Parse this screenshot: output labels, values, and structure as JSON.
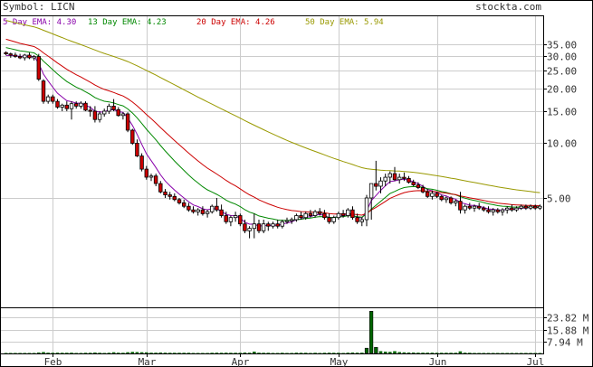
{
  "header": {
    "symbol_text": "Symbol: LICN",
    "brand": "stockta.com"
  },
  "legend": [
    {
      "label": "5 Day EMA: 4.30",
      "color": "#8800aa"
    },
    {
      "label": "13 Day EMA: 4.23",
      "color": "#008800"
    },
    {
      "label": "20 Day EMA: 4.26",
      "color": "#cc0000"
    },
    {
      "label": "50 Day EMA: 5.94",
      "color": "#999900"
    }
  ],
  "colors": {
    "up_candle": "#ffffff",
    "down_candle": "#cc0000",
    "candle_outline": "#000000",
    "volume_bar": "#006600",
    "grid": "#cccccc",
    "frame": "#000000"
  },
  "chart_data": {
    "type": "candlestick",
    "price_axis": {
      "scale": "log",
      "ticks": [
        35.0,
        30.0,
        25.0,
        20.0,
        15.0,
        10.0,
        5.0
      ],
      "tick_labels": [
        "35.00",
        "30.00",
        "25.00",
        "20.00",
        "15.00",
        "10.00",
        "5.00"
      ],
      "range": [
        2.5,
        40
      ]
    },
    "volume_axis": {
      "tick_labels": [
        "23.82 M",
        "15.88 M",
        "7.94 M"
      ],
      "ticks": [
        23.82,
        15.88,
        7.94
      ],
      "range": [
        0,
        30
      ],
      "unit": "M"
    },
    "x_axis": {
      "labels": [
        "Feb",
        "Mar",
        "Apr",
        "May",
        "Jun",
        "Jul"
      ],
      "label_bar_index": [
        10,
        30,
        50,
        71,
        92,
        113
      ]
    },
    "grid": true,
    "ohlc": [
      [
        31.5,
        32.0,
        30.5,
        31.0
      ],
      [
        31.0,
        31.5,
        29.5,
        30.5
      ],
      [
        30.5,
        31.5,
        29.5,
        30.0
      ],
      [
        30.0,
        31.0,
        29.0,
        29.5
      ],
      [
        29.5,
        31.0,
        28.5,
        30.5
      ],
      [
        30.5,
        31.5,
        29.0,
        29.5
      ],
      [
        29.5,
        30.5,
        28.5,
        30.0
      ],
      [
        30.0,
        31.0,
        22.0,
        22.5
      ],
      [
        22.0,
        22.5,
        16.5,
        17.0
      ],
      [
        17.0,
        18.5,
        16.5,
        18.0
      ],
      [
        18.0,
        18.5,
        16.5,
        17.0
      ],
      [
        17.0,
        17.5,
        15.5,
        15.8
      ],
      [
        15.8,
        16.5,
        15.0,
        16.2
      ],
      [
        16.2,
        17.0,
        15.0,
        15.5
      ],
      [
        15.5,
        17.0,
        13.5,
        16.5
      ],
      [
        16.5,
        17.0,
        15.5,
        16.0
      ],
      [
        16.0,
        17.0,
        15.5,
        16.6
      ],
      [
        16.6,
        17.0,
        15.0,
        15.2
      ],
      [
        15.2,
        16.0,
        14.0,
        15.0
      ],
      [
        15.0,
        16.0,
        13.0,
        13.5
      ],
      [
        13.5,
        15.0,
        13.0,
        14.5
      ],
      [
        14.5,
        15.5,
        14.0,
        15.0
      ],
      [
        15.0,
        16.5,
        14.5,
        16.0
      ],
      [
        16.0,
        17.5,
        15.0,
        15.3
      ],
      [
        15.3,
        15.8,
        14.0,
        14.2
      ],
      [
        14.2,
        14.8,
        13.5,
        14.5
      ],
      [
        14.5,
        14.8,
        11.5,
        11.8
      ],
      [
        11.8,
        12.0,
        9.8,
        10.0
      ],
      [
        10.0,
        10.5,
        8.4,
        8.5
      ],
      [
        8.5,
        8.8,
        7.0,
        7.2
      ],
      [
        7.2,
        7.5,
        6.3,
        6.5
      ],
      [
        6.5,
        6.8,
        6.2,
        6.6
      ],
      [
        6.6,
        6.8,
        5.8,
        6.0
      ],
      [
        6.0,
        6.2,
        5.3,
        5.4
      ],
      [
        5.4,
        5.6,
        5.0,
        5.2
      ],
      [
        5.2,
        5.4,
        4.9,
        5.1
      ],
      [
        5.1,
        5.3,
        4.8,
        4.9
      ],
      [
        4.9,
        5.0,
        4.6,
        4.7
      ],
      [
        4.7,
        4.9,
        4.4,
        4.5
      ],
      [
        4.5,
        4.7,
        4.2,
        4.3
      ],
      [
        4.3,
        4.5,
        4.1,
        4.2
      ],
      [
        4.2,
        4.4,
        4.0,
        4.3
      ],
      [
        4.3,
        4.5,
        4.0,
        4.1
      ],
      [
        4.1,
        4.3,
        3.9,
        4.2
      ],
      [
        4.2,
        4.6,
        4.1,
        4.5
      ],
      [
        4.5,
        5.0,
        4.2,
        4.3
      ],
      [
        4.3,
        4.6,
        3.9,
        4.0
      ],
      [
        4.0,
        4.2,
        3.6,
        3.7
      ],
      [
        3.7,
        4.0,
        3.5,
        3.9
      ],
      [
        3.9,
        4.2,
        3.7,
        4.0
      ],
      [
        4.0,
        4.1,
        3.5,
        3.6
      ],
      [
        3.6,
        3.8,
        3.2,
        3.3
      ],
      [
        3.3,
        3.5,
        3.0,
        3.4
      ],
      [
        3.4,
        4.1,
        3.0,
        3.6
      ],
      [
        3.6,
        3.8,
        3.2,
        3.3
      ],
      [
        3.3,
        3.8,
        3.2,
        3.6
      ],
      [
        3.6,
        3.7,
        3.3,
        3.5
      ],
      [
        3.5,
        3.7,
        3.4,
        3.6
      ],
      [
        3.6,
        3.8,
        3.4,
        3.5
      ],
      [
        3.5,
        3.8,
        3.4,
        3.7
      ],
      [
        3.7,
        3.9,
        3.6,
        3.75
      ],
      [
        3.75,
        3.9,
        3.6,
        3.8
      ],
      [
        3.8,
        4.1,
        3.7,
        4.0
      ],
      [
        4.0,
        4.2,
        3.8,
        3.9
      ],
      [
        3.9,
        4.2,
        3.8,
        4.1
      ],
      [
        4.1,
        4.3,
        3.9,
        4.0
      ],
      [
        4.0,
        4.3,
        3.9,
        4.2
      ],
      [
        4.2,
        4.4,
        4.0,
        4.1
      ],
      [
        4.1,
        4.3,
        3.8,
        3.9
      ],
      [
        3.9,
        4.1,
        3.6,
        3.7
      ],
      [
        3.7,
        4.0,
        3.6,
        3.9
      ],
      [
        3.9,
        4.2,
        3.8,
        4.1
      ],
      [
        4.1,
        4.3,
        3.9,
        4.0
      ],
      [
        4.0,
        4.4,
        3.9,
        4.3
      ],
      [
        4.3,
        4.5,
        3.8,
        3.9
      ],
      [
        3.9,
        4.1,
        3.6,
        3.7
      ],
      [
        3.7,
        3.9,
        3.5,
        3.8
      ],
      [
        3.8,
        5.2,
        3.5,
        5.0
      ],
      [
        5.0,
        6.0,
        3.8,
        6.0
      ],
      [
        6.0,
        8.0,
        5.5,
        5.8
      ],
      [
        5.8,
        6.5,
        5.3,
        6.2
      ],
      [
        6.2,
        6.8,
        5.8,
        6.5
      ],
      [
        6.5,
        7.0,
        6.0,
        6.8
      ],
      [
        6.8,
        7.4,
        6.2,
        6.3
      ],
      [
        6.3,
        6.8,
        6.0,
        6.5
      ],
      [
        6.5,
        6.9,
        6.2,
        6.4
      ],
      [
        6.4,
        6.6,
        6.0,
        6.1
      ],
      [
        6.1,
        6.3,
        5.8,
        5.9
      ],
      [
        5.9,
        6.1,
        5.6,
        5.7
      ],
      [
        5.7,
        5.9,
        5.3,
        5.4
      ],
      [
        5.4,
        5.6,
        5.0,
        5.1
      ],
      [
        5.1,
        5.5,
        4.9,
        5.3
      ],
      [
        5.3,
        5.4,
        5.0,
        5.1
      ],
      [
        5.1,
        5.2,
        4.8,
        4.9
      ],
      [
        4.9,
        5.1,
        4.7,
        5.0
      ],
      [
        5.0,
        5.1,
        4.6,
        4.7
      ],
      [
        4.7,
        4.9,
        4.5,
        4.8
      ],
      [
        4.8,
        5.4,
        4.1,
        4.3
      ],
      [
        4.3,
        4.6,
        4.1,
        4.5
      ],
      [
        4.5,
        4.7,
        4.3,
        4.4
      ],
      [
        4.4,
        4.6,
        4.2,
        4.5
      ],
      [
        4.5,
        4.7,
        4.3,
        4.4
      ],
      [
        4.4,
        4.5,
        4.2,
        4.3
      ],
      [
        4.3,
        4.5,
        4.1,
        4.2
      ],
      [
        4.2,
        4.4,
        4.0,
        4.3
      ],
      [
        4.3,
        4.4,
        4.1,
        4.2
      ],
      [
        4.2,
        4.4,
        4.0,
        4.3
      ],
      [
        4.3,
        4.5,
        4.1,
        4.4
      ],
      [
        4.4,
        4.6,
        4.2,
        4.3
      ],
      [
        4.3,
        4.5,
        4.2,
        4.4
      ],
      [
        4.4,
        4.6,
        4.3,
        4.5
      ],
      [
        4.5,
        4.6,
        4.3,
        4.4
      ],
      [
        4.4,
        4.6,
        4.3,
        4.5
      ],
      [
        4.5,
        4.6,
        4.3,
        4.4
      ],
      [
        4.4,
        4.6,
        4.3,
        4.5
      ]
    ],
    "volume": [
      0.2,
      0.3,
      0.2,
      0.2,
      0.3,
      0.2,
      0.3,
      0.6,
      0.9,
      0.5,
      0.4,
      0.5,
      0.4,
      0.4,
      0.5,
      0.3,
      0.3,
      0.4,
      0.4,
      0.6,
      0.4,
      0.3,
      0.4,
      0.8,
      0.5,
      0.4,
      0.8,
      1.0,
      0.9,
      0.8,
      0.7,
      0.5,
      0.5,
      0.6,
      0.5,
      0.4,
      0.4,
      0.4,
      0.4,
      0.4,
      0.3,
      0.3,
      0.3,
      0.3,
      0.4,
      0.5,
      0.4,
      0.5,
      0.4,
      0.4,
      0.4,
      0.6,
      0.5,
      1.2,
      0.5,
      0.4,
      0.4,
      0.3,
      0.3,
      0.4,
      0.3,
      0.3,
      0.5,
      0.4,
      0.4,
      0.3,
      0.4,
      0.3,
      0.4,
      0.5,
      0.4,
      0.4,
      0.3,
      0.5,
      0.6,
      0.5,
      0.5,
      3.5,
      28.0,
      4.0,
      1.5,
      1.2,
      1.0,
      1.5,
      0.9,
      0.7,
      0.6,
      0.6,
      0.5,
      0.5,
      0.5,
      0.5,
      0.4,
      0.4,
      0.4,
      0.4,
      0.4,
      1.4,
      0.5,
      0.4,
      0.3,
      0.3,
      0.3,
      0.3,
      0.3,
      0.3,
      0.3,
      0.3,
      0.3,
      0.3,
      0.3,
      0.3,
      0.3,
      0.3,
      0.3
    ],
    "ema": [
      {
        "name": "5 Day EMA",
        "period": 5,
        "seed": 30,
        "color": "#8800aa"
      },
      {
        "name": "13 Day EMA",
        "period": 13,
        "seed": 34,
        "color": "#008800"
      },
      {
        "name": "20 Day EMA",
        "period": 20,
        "seed": 38,
        "color": "#cc0000"
      },
      {
        "name": "50 Day EMA",
        "period": 50,
        "seed": 48,
        "color": "#999900"
      }
    ]
  }
}
